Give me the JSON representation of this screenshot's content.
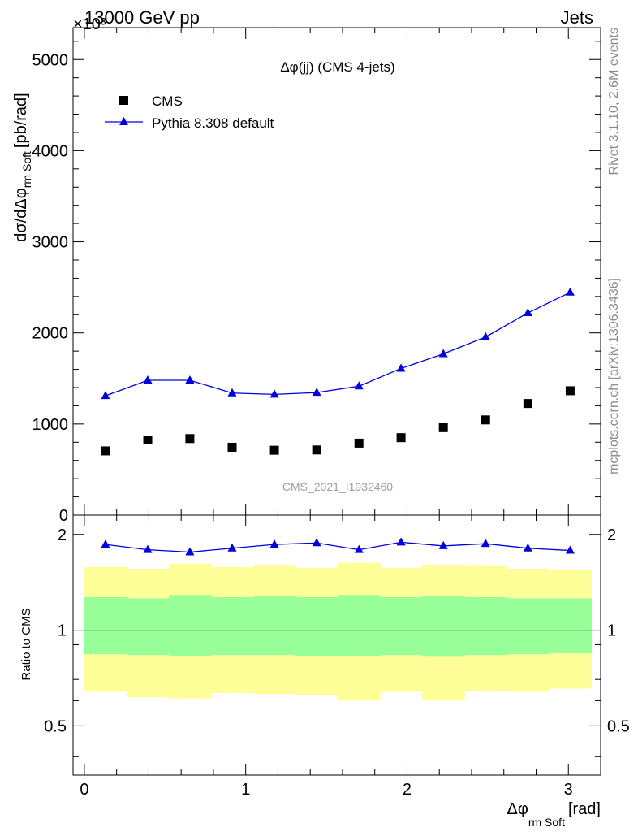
{
  "header": {
    "left": "13000 GeV pp",
    "right": "Jets",
    "exponent": "×10³"
  },
  "side_labels": {
    "rivet": "Rivet 3.1.10,  2.6M events",
    "mcplots": "mcplots.cern.ch [arXiv:1306.3436]"
  },
  "chart_data": {
    "type": "scatter",
    "title": "Δφ(jj) (CMS 4-jets)",
    "watermark": "CMS_2021_I1932460",
    "xlabel_main": "Δφ",
    "xlabel_sub": "rm Soft",
    "xlabel_unit": "[rad]",
    "ylabel_main": "dσ/dΔφ",
    "ylabel_sub": "rm Soft",
    "ylabel_unit": "[pb/rad]",
    "ratio_ylabel": "Ratio to CMS",
    "xlim": [
      -0.07,
      3.2
    ],
    "ylim": [
      0,
      5350
    ],
    "ratio_ylim": [
      0.35,
      2.3
    ],
    "x_ticks": [
      0,
      1,
      2,
      3
    ],
    "x_tick_labels": [
      "0",
      "1",
      "2",
      "3"
    ],
    "y_ticks": [
      0,
      1000,
      2000,
      3000,
      4000,
      5000
    ],
    "y_tick_labels": [
      "0",
      "1000",
      "2000",
      "3000",
      "4000",
      "5000"
    ],
    "ratio_ticks": [
      0.5,
      1,
      2
    ],
    "ratio_tick_labels": [
      "0.5",
      "1",
      "2"
    ],
    "bin_edges": [
      0,
      0.262,
      0.524,
      0.785,
      1.047,
      1.309,
      1.571,
      1.833,
      2.094,
      2.356,
      2.618,
      2.88,
      3.142
    ],
    "legend": {
      "position": "top-left"
    },
    "series": [
      {
        "name": "CMS",
        "marker": "square",
        "color": "#000000",
        "x": [
          0.131,
          0.393,
          0.654,
          0.916,
          1.178,
          1.44,
          1.702,
          1.963,
          2.225,
          2.487,
          2.749,
          3.011
        ],
        "y": [
          705,
          825,
          840,
          745,
          712,
          715,
          790,
          850,
          960,
          1045,
          1225,
          1365
        ]
      },
      {
        "name": "Pythia 8.308 default",
        "marker": "triangle",
        "color": "#0000dd",
        "x": [
          0.131,
          0.393,
          0.654,
          0.916,
          1.178,
          1.44,
          1.702,
          1.963,
          2.225,
          2.487,
          2.749,
          3.011
        ],
        "y": [
          1310,
          1480,
          1480,
          1340,
          1325,
          1345,
          1415,
          1610,
          1770,
          1955,
          2220,
          2445
        ]
      }
    ],
    "ratio_series": {
      "name": "Pythia 8.308 default",
      "y": [
        1.86,
        1.79,
        1.76,
        1.81,
        1.86,
        1.88,
        1.79,
        1.89,
        1.84,
        1.87,
        1.81,
        1.78
      ]
    },
    "bands": {
      "outer": {
        "color": "#ffff99",
        "low": [
          0.64,
          0.615,
          0.61,
          0.635,
          0.63,
          0.625,
          0.6,
          0.64,
          0.6,
          0.645,
          0.64,
          0.655
        ],
        "high": [
          1.58,
          1.56,
          1.62,
          1.58,
          1.6,
          1.57,
          1.63,
          1.57,
          1.6,
          1.59,
          1.56,
          1.55
        ]
      },
      "inner": {
        "color": "#99ff99",
        "low": [
          0.84,
          0.835,
          0.83,
          0.835,
          0.835,
          0.83,
          0.83,
          0.835,
          0.825,
          0.835,
          0.84,
          0.845
        ],
        "high": [
          1.27,
          1.26,
          1.29,
          1.27,
          1.28,
          1.27,
          1.29,
          1.27,
          1.28,
          1.27,
          1.26,
          1.26
        ]
      }
    }
  }
}
